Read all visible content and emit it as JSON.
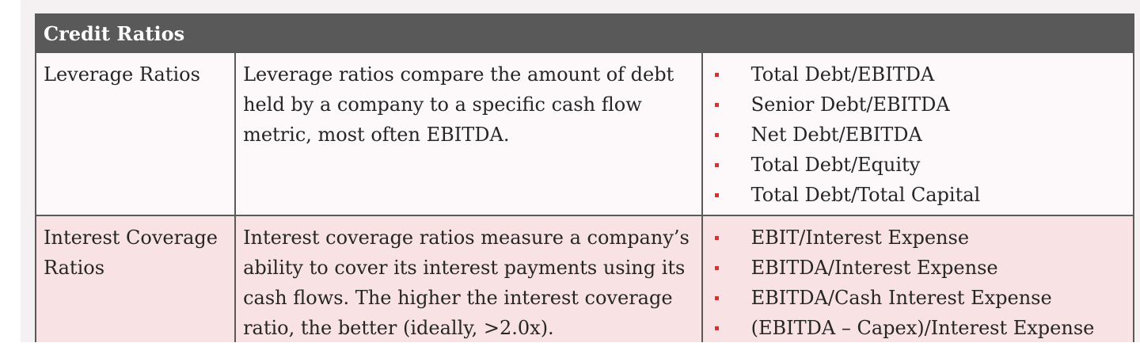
{
  "table": {
    "title": "Credit Ratios",
    "rows": [
      {
        "name": "Leverage Ratios",
        "description": "Leverage ratios compare the amount of debt held by a company to a specific cash flow metric, most often EBITDA.",
        "metrics": [
          "Total Debt/EBITDA",
          "Senior Debt/EBITDA",
          "Net Debt/EBITDA",
          "Total Debt/Equity",
          "Total Debt/Total Capital"
        ]
      },
      {
        "name": "Interest Coverage Ratios",
        "description": "Interest coverage ratios measure a company’s ability to cover its interest payments using its cash flows. The higher the interest coverage ratio, the better (ideally, >2.0x).",
        "metrics": [
          "EBIT/Interest Expense",
          "EBITDA/Interest Expense",
          "EBITDA/Cash Interest Expense",
          "(EBITDA – Capex)/Interest Expense"
        ]
      }
    ]
  },
  "colors": {
    "header_bg": "#595959",
    "bullet": "#d9302c",
    "coverage_row_bg": "#f8e2e3"
  }
}
